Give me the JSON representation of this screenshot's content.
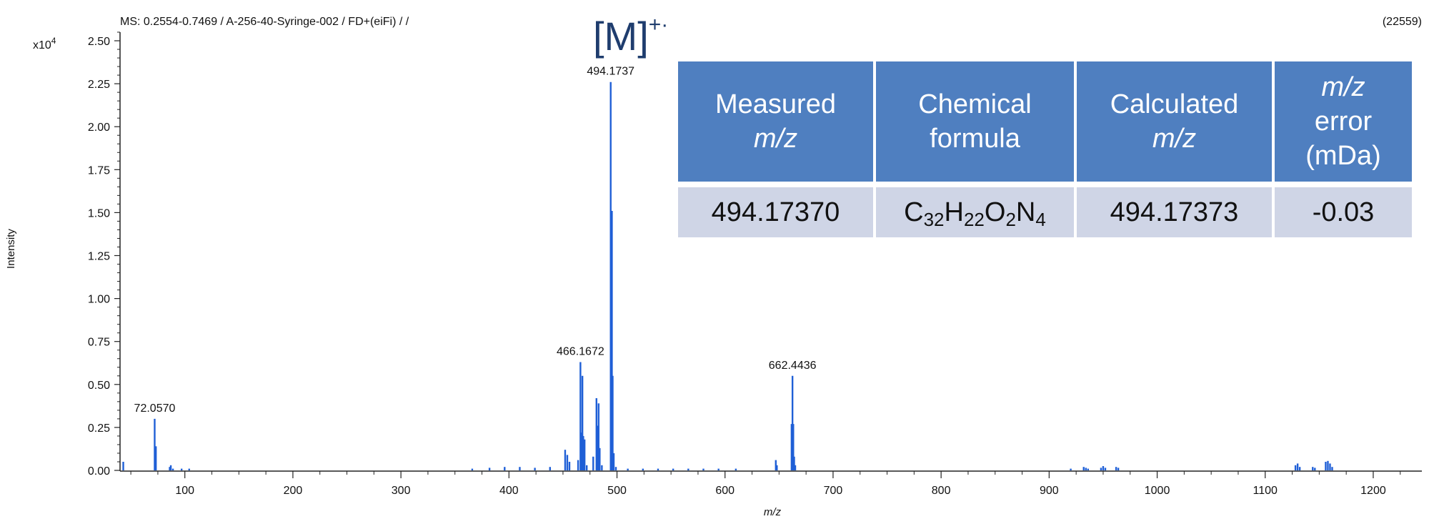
{
  "header": {
    "scan_info": "MS: 0.2554-0.7469 / A-256-40-Syringe-002 / FD+(eiFi) /  /",
    "scan_count": "(22559)"
  },
  "ion_label": {
    "bracket": "[M]",
    "charge": "+·"
  },
  "colors": {
    "spectrum": "#1f5fd6",
    "axis": "#222222",
    "table_header": "#4f7fc0",
    "table_cell": "#cfd5e6",
    "ion_label": "#1f3d6e"
  },
  "chart_data": {
    "type": "bar",
    "xlabel": "m/z",
    "ylabel": "Intensity",
    "y_exponent_label": "x10",
    "y_exponent": "4",
    "xlim": [
      40,
      1245
    ],
    "ylim": [
      0,
      2.55
    ],
    "x_ticks": [
      100,
      200,
      300,
      400,
      500,
      600,
      700,
      800,
      900,
      1000,
      1100,
      1200
    ],
    "y_ticks": [
      "0.00",
      "0.25",
      "0.50",
      "0.75",
      "1.00",
      "1.25",
      "1.50",
      "1.75",
      "2.00",
      "2.25",
      "2.50"
    ],
    "grid": false,
    "peaks": [
      [
        43,
        0.05
      ],
      [
        72.057,
        0.3
      ],
      [
        72.6,
        0.14
      ],
      [
        73.2,
        0.14
      ],
      [
        86,
        0.02
      ],
      [
        87,
        0.03
      ],
      [
        89,
        0.01
      ],
      [
        97,
        0.01
      ],
      [
        104,
        0.01
      ],
      [
        366,
        0.01
      ],
      [
        382,
        0.015
      ],
      [
        396,
        0.02
      ],
      [
        410,
        0.02
      ],
      [
        424,
        0.015
      ],
      [
        438,
        0.02
      ],
      [
        452,
        0.12
      ],
      [
        454,
        0.09
      ],
      [
        456,
        0.05
      ],
      [
        464,
        0.06
      ],
      [
        466.1672,
        0.63
      ],
      [
        467.0,
        0.22
      ],
      [
        468.0,
        0.55
      ],
      [
        468.8,
        0.2
      ],
      [
        470,
        0.18
      ],
      [
        472,
        0.03
      ],
      [
        478,
        0.08
      ],
      [
        481,
        0.42
      ],
      [
        482,
        0.26
      ],
      [
        483,
        0.39
      ],
      [
        484,
        0.13
      ],
      [
        486,
        0.03
      ],
      [
        494.1737,
        2.26
      ],
      [
        494.8,
        0.8
      ],
      [
        495.3,
        1.51
      ],
      [
        496.0,
        0.55
      ],
      [
        497,
        0.1
      ],
      [
        499,
        0.02
      ],
      [
        510,
        0.01
      ],
      [
        524,
        0.01
      ],
      [
        538,
        0.01
      ],
      [
        552,
        0.01
      ],
      [
        566,
        0.01
      ],
      [
        580,
        0.01
      ],
      [
        594,
        0.01
      ],
      [
        610,
        0.01
      ],
      [
        647,
        0.06
      ],
      [
        648,
        0.03
      ],
      [
        662.4436,
        0.55
      ],
      [
        661.6,
        0.27
      ],
      [
        663.2,
        0.27
      ],
      [
        664,
        0.08
      ],
      [
        665,
        0.03
      ],
      [
        920,
        0.01
      ],
      [
        932,
        0.02
      ],
      [
        934,
        0.015
      ],
      [
        936,
        0.01
      ],
      [
        948,
        0.015
      ],
      [
        950,
        0.025
      ],
      [
        952,
        0.015
      ],
      [
        962,
        0.02
      ],
      [
        964,
        0.015
      ],
      [
        1128,
        0.03
      ],
      [
        1130,
        0.04
      ],
      [
        1132,
        0.02
      ],
      [
        1144,
        0.02
      ],
      [
        1146,
        0.015
      ],
      [
        1156,
        0.05
      ],
      [
        1158,
        0.055
      ],
      [
        1160,
        0.04
      ],
      [
        1162,
        0.02
      ]
    ],
    "peak_labels": [
      {
        "x": 72.057,
        "y": 0.3,
        "text": "72.0570"
      },
      {
        "x": 466.1672,
        "y": 0.63,
        "text": "466.1672"
      },
      {
        "x": 494.1737,
        "y": 2.26,
        "text": "494.1737"
      },
      {
        "x": 662.4436,
        "y": 0.55,
        "text": "662.4436"
      }
    ]
  },
  "table": {
    "header": {
      "measured_line1": "Measured",
      "measured_line2": "m/z",
      "formula_line1": "Chemical",
      "formula_line2": "formula",
      "calculated_line1": "Calculated",
      "calculated_line2": "m/z",
      "error_line1": "m/z",
      "error_line2": "error",
      "error_line3": "(mDa)"
    },
    "row": {
      "measured": "494.17370",
      "formula": {
        "c": "C",
        "c_n": "32",
        "h": "H",
        "h_n": "22",
        "o": "O",
        "o_n": "2",
        "n": "N",
        "n_n": "4"
      },
      "calculated": "494.17373",
      "error": "-0.03"
    }
  }
}
